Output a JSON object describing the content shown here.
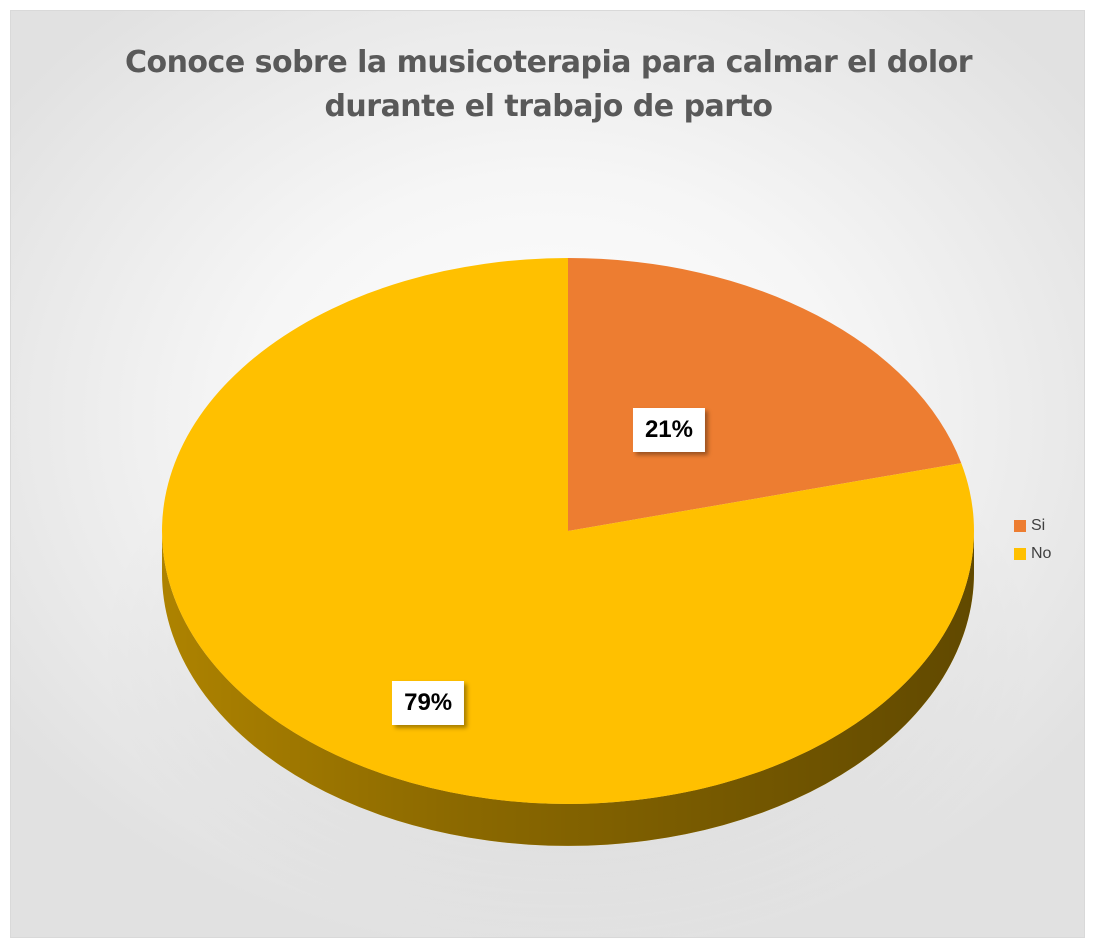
{
  "chart_data": {
    "type": "pie",
    "title": "Conoce sobre la musicoterapia para calmar el dolor\ndurante el trabajo de parto",
    "categories": [
      "Si",
      "No"
    ],
    "values": [
      21,
      79
    ],
    "value_labels": [
      "21%",
      "79%"
    ],
    "colors": [
      "#ED7D31",
      "#FFC000"
    ],
    "style": "3d",
    "legend": "right"
  }
}
